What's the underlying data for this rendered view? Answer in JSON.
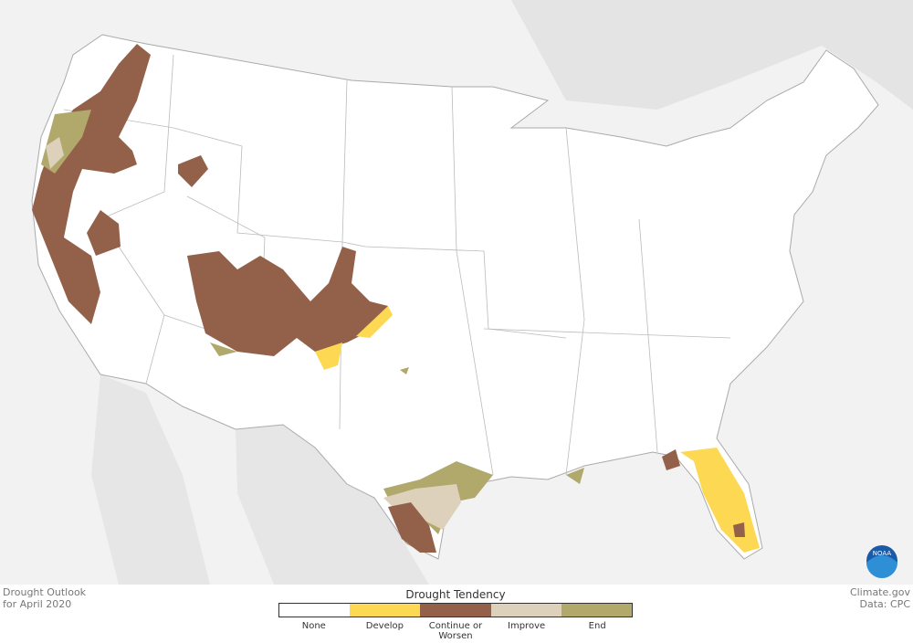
{
  "footer": {
    "title": "Drought Outlook",
    "subtitle": "for April 2020",
    "credit": "Climate.gov",
    "source": "Data: CPC"
  },
  "logo": "NOAA",
  "legend": {
    "title": "Drought Tendency",
    "items": [
      {
        "label": "None",
        "color": "#ffffff"
      },
      {
        "label": "Develop",
        "color": "#fdd853"
      },
      {
        "label": "Continue or Worsen",
        "color": "#93614a"
      },
      {
        "label": "Improve",
        "color": "#ddd1bc"
      },
      {
        "label": "End",
        "color": "#b1a96b"
      }
    ]
  }
}
